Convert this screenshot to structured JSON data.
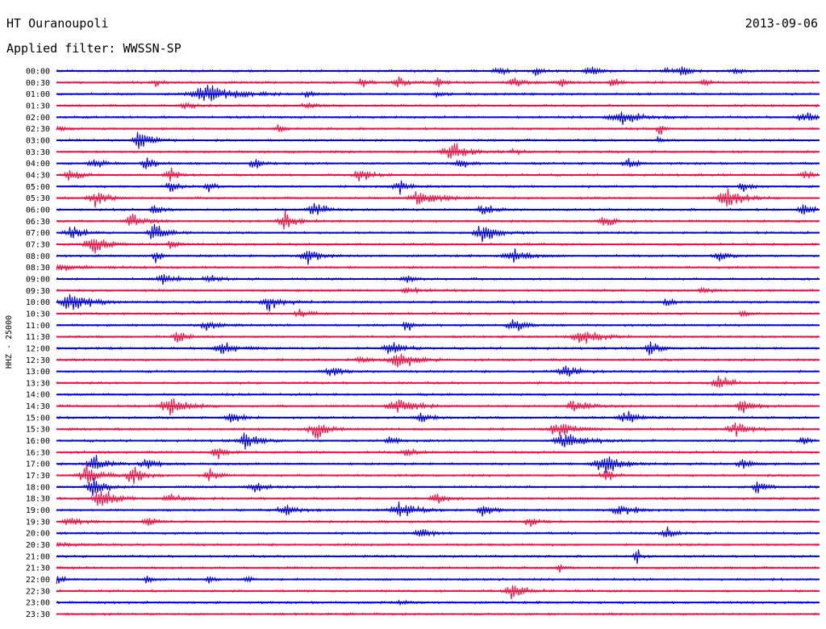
{
  "header": {
    "station": "HT Ouranoupoli",
    "date": "2013-09-06",
    "filter": "Applied filter: WWSSN-SP"
  },
  "chart_data": {
    "type": "line",
    "ylabel": "HHZ - 25000",
    "colors": [
      "#0000dd",
      "#ee1144"
    ],
    "rows": [
      "00:00",
      "00:30",
      "01:00",
      "01:30",
      "02:00",
      "02:30",
      "03:00",
      "03:30",
      "04:00",
      "04:30",
      "05:00",
      "05:30",
      "06:00",
      "06:30",
      "07:00",
      "07:30",
      "08:00",
      "08:30",
      "09:00",
      "09:30",
      "10:00",
      "10:30",
      "11:00",
      "11:30",
      "12:00",
      "12:30",
      "13:00",
      "13:30",
      "14:00",
      "14:30",
      "15:00",
      "15:30",
      "16:00",
      "16:30",
      "17:00",
      "17:30",
      "18:00",
      "18:30",
      "19:00",
      "19:30",
      "20:00",
      "20:30",
      "21:00",
      "21:30",
      "22:00",
      "22:30",
      "23:00",
      "23:30"
    ],
    "events": [
      [
        [
          0.58,
          0.5,
          8
        ],
        [
          0.63,
          0.5,
          6
        ],
        [
          0.7,
          0.6,
          8
        ],
        [
          0.8,
          0.4,
          6
        ],
        [
          0.82,
          0.6,
          8
        ],
        [
          0.89,
          0.4,
          6
        ]
      ],
      [
        [
          0.13,
          0.5,
          4
        ],
        [
          0.4,
          0.5,
          6
        ],
        [
          0.45,
          0.5,
          8
        ],
        [
          0.5,
          0.5,
          6
        ],
        [
          0.6,
          0.5,
          8
        ],
        [
          0.66,
          0.5,
          6
        ],
        [
          0.73,
          0.5,
          6
        ],
        [
          0.85,
          0.4,
          6
        ]
      ],
      [
        [
          0.2,
          1.0,
          25
        ],
        [
          0.33,
          0.4,
          6
        ],
        [
          0.5,
          0.4,
          6
        ]
      ],
      [
        [
          0.17,
          0.3,
          10
        ],
        [
          0.33,
          0.3,
          10
        ]
      ],
      [
        [
          0.74,
          0.8,
          18
        ],
        [
          0.98,
          0.6,
          10
        ]
      ],
      [
        [
          0.0,
          0.3,
          8
        ],
        [
          0.29,
          0.4,
          5
        ],
        [
          0.79,
          0.9,
          4
        ]
      ],
      [
        [
          0.11,
          1.0,
          10
        ],
        [
          0.79,
          0.4,
          4
        ]
      ],
      [
        [
          0.52,
          1.0,
          14
        ],
        [
          0.6,
          0.3,
          6
        ]
      ],
      [
        [
          0.05,
          0.6,
          8
        ],
        [
          0.12,
          0.7,
          8
        ],
        [
          0.26,
          0.8,
          6
        ],
        [
          0.53,
          0.6,
          8
        ],
        [
          0.75,
          0.6,
          8
        ]
      ],
      [
        [
          0.02,
          0.6,
          10
        ],
        [
          0.15,
          0.6,
          8
        ],
        [
          0.4,
          0.7,
          10
        ],
        [
          0.98,
          0.6,
          6
        ]
      ],
      [
        [
          0.15,
          0.5,
          8
        ],
        [
          0.2,
          0.5,
          6
        ],
        [
          0.45,
          0.6,
          10
        ],
        [
          0.9,
          0.5,
          6
        ]
      ],
      [
        [
          0.05,
          1.0,
          10
        ],
        [
          0.48,
          0.9,
          16
        ],
        [
          0.88,
          1.0,
          14
        ]
      ],
      [
        [
          0.13,
          0.6,
          8
        ],
        [
          0.34,
          0.7,
          10
        ],
        [
          0.56,
          0.6,
          8
        ],
        [
          0.98,
          0.6,
          8
        ]
      ],
      [
        [
          0.1,
          0.8,
          10
        ],
        [
          0.3,
          1.0,
          10
        ],
        [
          0.72,
          0.7,
          8
        ]
      ],
      [
        [
          0.02,
          0.7,
          10
        ],
        [
          0.13,
          1.0,
          10
        ],
        [
          0.56,
          1.0,
          12
        ]
      ],
      [
        [
          0.05,
          1.0,
          12
        ],
        [
          0.15,
          0.4,
          8
        ]
      ],
      [
        [
          0.13,
          1.0,
          4
        ],
        [
          0.33,
          0.8,
          10
        ],
        [
          0.6,
          0.6,
          14
        ],
        [
          0.87,
          0.5,
          8
        ]
      ],
      [
        [
          0.0,
          0.3,
          30
        ]
      ],
      [
        [
          0.14,
          0.6,
          10
        ],
        [
          0.2,
          0.5,
          8
        ],
        [
          0.46,
          0.4,
          8
        ]
      ],
      [
        [
          0.46,
          0.4,
          10
        ],
        [
          0.85,
          0.3,
          10
        ]
      ],
      [
        [
          0.02,
          1.0,
          16
        ],
        [
          0.28,
          0.8,
          12
        ],
        [
          0.8,
          0.5,
          6
        ]
      ],
      [
        [
          0.32,
          0.4,
          10
        ],
        [
          0.9,
          0.4,
          6
        ]
      ],
      [
        [
          0.2,
          0.5,
          10
        ],
        [
          0.46,
          0.6,
          6
        ],
        [
          0.6,
          0.7,
          10
        ]
      ],
      [
        [
          0.16,
          0.6,
          8
        ],
        [
          0.69,
          0.9,
          14
        ]
      ],
      [
        [
          0.22,
          0.6,
          14
        ],
        [
          0.44,
          0.6,
          12
        ],
        [
          0.78,
          0.8,
          8
        ]
      ],
      [
        [
          0.45,
          1.0,
          14
        ],
        [
          0.4,
          0.4,
          8
        ]
      ],
      [
        [
          0.36,
          0.6,
          10
        ],
        [
          0.67,
          0.6,
          12
        ]
      ],
      [
        [
          0.87,
          0.8,
          10
        ]
      ],
      [],
      [
        [
          0.15,
          1.0,
          14
        ],
        [
          0.45,
          0.9,
          16
        ],
        [
          0.68,
          0.6,
          12
        ],
        [
          0.9,
          0.8,
          10
        ]
      ],
      [
        [
          0.23,
          0.6,
          10
        ],
        [
          0.48,
          0.5,
          10
        ],
        [
          0.75,
          0.6,
          14
        ]
      ],
      [
        [
          0.34,
          1.0,
          10
        ],
        [
          0.66,
          0.8,
          14
        ],
        [
          0.89,
          0.7,
          12
        ]
      ],
      [
        [
          0.25,
          0.8,
          12
        ],
        [
          0.44,
          0.6,
          8
        ],
        [
          0.67,
          1.0,
          16
        ],
        [
          0.98,
          0.6,
          6
        ]
      ],
      [
        [
          0.21,
          0.6,
          8
        ],
        [
          0.46,
          0.5,
          8
        ]
      ],
      [
        [
          0.05,
          0.9,
          10
        ],
        [
          0.12,
          0.7,
          10
        ],
        [
          0.72,
          1.0,
          16
        ],
        [
          0.9,
          0.6,
          8
        ]
      ],
      [
        [
          0.04,
          1.0,
          12
        ],
        [
          0.1,
          0.9,
          10
        ],
        [
          0.2,
          0.6,
          8
        ],
        [
          0.72,
          0.6,
          8
        ]
      ],
      [
        [
          0.05,
          1.0,
          10
        ],
        [
          0.26,
          0.5,
          10
        ],
        [
          0.92,
          0.6,
          8
        ]
      ],
      [
        [
          0.06,
          1.0,
          12
        ],
        [
          0.15,
          0.5,
          10
        ],
        [
          0.5,
          0.5,
          10
        ]
      ],
      [
        [
          0.3,
          0.5,
          12
        ],
        [
          0.45,
          0.9,
          14
        ],
        [
          0.56,
          0.7,
          8
        ],
        [
          0.74,
          0.6,
          12
        ]
      ],
      [
        [
          0.02,
          0.5,
          10
        ],
        [
          0.12,
          0.6,
          6
        ],
        [
          0.62,
          0.5,
          8
        ]
      ],
      [
        [
          0.48,
          0.6,
          10
        ],
        [
          0.8,
          0.6,
          8
        ]
      ],
      [
        [
          0.0,
          0.3,
          20
        ]
      ],
      [
        [
          0.76,
          0.8,
          4
        ]
      ],
      [
        [
          0.66,
          0.5,
          4
        ]
      ],
      [
        [
          0.0,
          0.5,
          6
        ],
        [
          0.12,
          0.6,
          4
        ],
        [
          0.2,
          0.5,
          4
        ],
        [
          0.25,
          0.5,
          4
        ]
      ],
      [
        [
          0.6,
          1.0,
          10
        ]
      ],
      [
        [
          0.45,
          0.2,
          8
        ]
      ],
      []
    ]
  }
}
